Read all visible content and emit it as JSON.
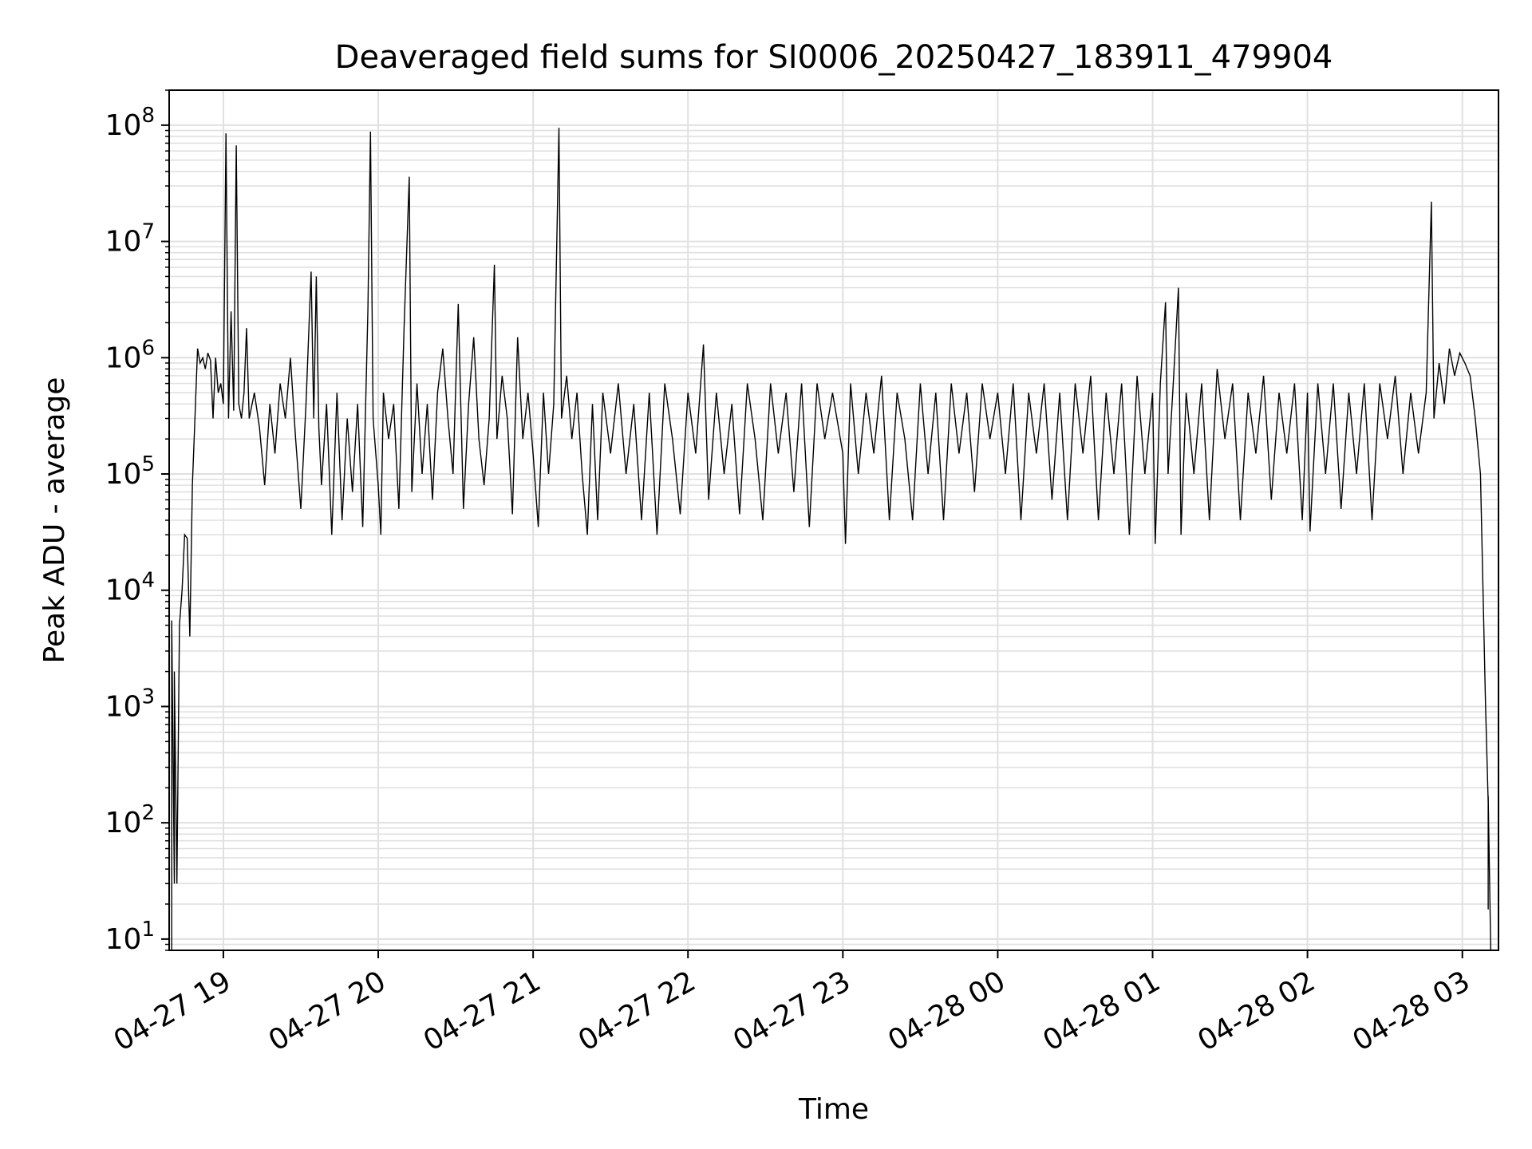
{
  "chart_data": {
    "type": "line",
    "title": "Deaveraged field sums for SI0006_20250427_183911_479904",
    "xlabel": "Time",
    "ylabel": "Peak ADU - average",
    "yscale": "log",
    "grid": "major and minor",
    "line_color": "#000000",
    "grid_color": "#e0e0e0",
    "xlim": [
      "2025-04-27 18:39",
      "2025-04-28 03:14"
    ],
    "ylim": [
      8,
      200000000
    ],
    "x_ticks": [
      {
        "value": "2025-04-27 19:00",
        "label": "04-27 19"
      },
      {
        "value": "2025-04-27 20:00",
        "label": "04-27 20"
      },
      {
        "value": "2025-04-27 21:00",
        "label": "04-27 21"
      },
      {
        "value": "2025-04-27 22:00",
        "label": "04-27 22"
      },
      {
        "value": "2025-04-27 23:00",
        "label": "04-27 23"
      },
      {
        "value": "2025-04-28 00:00",
        "label": "04-28 00"
      },
      {
        "value": "2025-04-28 01:00",
        "label": "04-28 01"
      },
      {
        "value": "2025-04-28 02:00",
        "label": "04-28 02"
      },
      {
        "value": "2025-04-28 03:00",
        "label": "04-28 03"
      }
    ],
    "y_ticks": [
      {
        "value": 10,
        "base": "10",
        "exp": "1"
      },
      {
        "value": 100,
        "base": "10",
        "exp": "2"
      },
      {
        "value": 1000,
        "base": "10",
        "exp": "3"
      },
      {
        "value": 10000,
        "base": "10",
        "exp": "4"
      },
      {
        "value": 100000,
        "base": "10",
        "exp": "5"
      },
      {
        "value": 1000000,
        "base": "10",
        "exp": "6"
      },
      {
        "value": 10000000,
        "base": "10",
        "exp": "7"
      },
      {
        "value": 100000000,
        "base": "10",
        "exp": "8"
      }
    ],
    "series": [
      {
        "points": [
          [
            "2025-04-27 18:39",
            8
          ],
          [
            "2025-04-27 18:40",
            8
          ],
          [
            "2025-04-27 18:40",
            5500
          ],
          [
            "2025-04-27 18:41",
            30
          ],
          [
            "2025-04-27 18:41",
            2000
          ],
          [
            "2025-04-27 18:42",
            30
          ],
          [
            "2025-04-27 18:43",
            5000
          ],
          [
            "2025-04-27 18:44",
            10000
          ],
          [
            "2025-04-27 18:45",
            30000
          ],
          [
            "2025-04-27 18:46",
            28000
          ],
          [
            "2025-04-27 18:47",
            4000
          ],
          [
            "2025-04-27 18:48",
            80000
          ],
          [
            "2025-04-27 18:49",
            300000
          ],
          [
            "2025-04-27 18:50",
            1200000
          ],
          [
            "2025-04-27 18:51",
            900000
          ],
          [
            "2025-04-27 18:52",
            1000000
          ],
          [
            "2025-04-27 18:53",
            800000
          ],
          [
            "2025-04-27 18:54",
            1100000
          ],
          [
            "2025-04-27 18:55",
            950000
          ],
          [
            "2025-04-27 18:56",
            300000
          ],
          [
            "2025-04-27 18:57",
            1000000
          ],
          [
            "2025-04-27 18:58",
            500000
          ],
          [
            "2025-04-27 18:59",
            600000
          ],
          [
            "2025-04-27 19:00",
            400000
          ],
          [
            "2025-04-27 19:01",
            85000000
          ],
          [
            "2025-04-27 19:02",
            300000
          ],
          [
            "2025-04-27 19:03",
            2500000
          ],
          [
            "2025-04-27 19:04",
            350000
          ],
          [
            "2025-04-27 19:05",
            67000000
          ],
          [
            "2025-04-27 19:06",
            400000
          ],
          [
            "2025-04-27 19:07",
            300000
          ],
          [
            "2025-04-27 19:08",
            500000
          ],
          [
            "2025-04-27 19:09",
            1800000
          ],
          [
            "2025-04-27 19:10",
            300000
          ],
          [
            "2025-04-27 19:12",
            500000
          ],
          [
            "2025-04-27 19:14",
            250000
          ],
          [
            "2025-04-27 19:16",
            80000
          ],
          [
            "2025-04-27 19:18",
            400000
          ],
          [
            "2025-04-27 19:20",
            150000
          ],
          [
            "2025-04-27 19:22",
            600000
          ],
          [
            "2025-04-27 19:24",
            300000
          ],
          [
            "2025-04-27 19:26",
            1000000
          ],
          [
            "2025-04-27 19:28",
            200000
          ],
          [
            "2025-04-27 19:30",
            50000
          ],
          [
            "2025-04-27 19:32",
            400000
          ],
          [
            "2025-04-27 19:34",
            5500000
          ],
          [
            "2025-04-27 19:35",
            300000
          ],
          [
            "2025-04-27 19:36",
            5000000
          ],
          [
            "2025-04-27 19:37",
            250000
          ],
          [
            "2025-04-27 19:38",
            80000
          ],
          [
            "2025-04-27 19:40",
            400000
          ],
          [
            "2025-04-27 19:42",
            30000
          ],
          [
            "2025-04-27 19:44",
            500000
          ],
          [
            "2025-04-27 19:46",
            40000
          ],
          [
            "2025-04-27 19:48",
            300000
          ],
          [
            "2025-04-27 19:50",
            70000
          ],
          [
            "2025-04-27 19:52",
            400000
          ],
          [
            "2025-04-27 19:54",
            35000
          ],
          [
            "2025-04-27 19:56",
            2600000
          ],
          [
            "2025-04-27 19:57",
            88000000
          ],
          [
            "2025-04-27 19:58",
            300000
          ],
          [
            "2025-04-27 20:00",
            80000
          ],
          [
            "2025-04-27 20:01",
            30000
          ],
          [
            "2025-04-27 20:02",
            500000
          ],
          [
            "2025-04-27 20:04",
            200000
          ],
          [
            "2025-04-27 20:06",
            400000
          ],
          [
            "2025-04-27 20:08",
            50000
          ],
          [
            "2025-04-27 20:10",
            1800000
          ],
          [
            "2025-04-27 20:12",
            36000000
          ],
          [
            "2025-04-27 20:13",
            70000
          ],
          [
            "2025-04-27 20:15",
            600000
          ],
          [
            "2025-04-27 20:17",
            100000
          ],
          [
            "2025-04-27 20:19",
            400000
          ],
          [
            "2025-04-27 20:21",
            60000
          ],
          [
            "2025-04-27 20:23",
            500000
          ],
          [
            "2025-04-27 20:25",
            1200000
          ],
          [
            "2025-04-27 20:27",
            300000
          ],
          [
            "2025-04-27 20:29",
            100000
          ],
          [
            "2025-04-27 20:31",
            2900000
          ],
          [
            "2025-04-27 20:33",
            50000
          ],
          [
            "2025-04-27 20:35",
            400000
          ],
          [
            "2025-04-27 20:37",
            1500000
          ],
          [
            "2025-04-27 20:39",
            200000
          ],
          [
            "2025-04-27 20:41",
            80000
          ],
          [
            "2025-04-27 20:43",
            300000
          ],
          [
            "2025-04-27 20:45",
            6300000
          ],
          [
            "2025-04-27 20:46",
            200000
          ],
          [
            "2025-04-27 20:48",
            700000
          ],
          [
            "2025-04-27 20:50",
            300000
          ],
          [
            "2025-04-27 20:52",
            45000
          ],
          [
            "2025-04-27 20:54",
            1500000
          ],
          [
            "2025-04-27 20:56",
            200000
          ],
          [
            "2025-04-27 20:58",
            500000
          ],
          [
            "2025-04-27 21:00",
            150000
          ],
          [
            "2025-04-27 21:02",
            35000
          ],
          [
            "2025-04-27 21:04",
            500000
          ],
          [
            "2025-04-27 21:06",
            100000
          ],
          [
            "2025-04-27 21:08",
            400000
          ],
          [
            "2025-04-27 21:10",
            95000000
          ],
          [
            "2025-04-27 21:11",
            300000
          ],
          [
            "2025-04-27 21:13",
            700000
          ],
          [
            "2025-04-27 21:15",
            200000
          ],
          [
            "2025-04-27 21:17",
            500000
          ],
          [
            "2025-04-27 21:19",
            100000
          ],
          [
            "2025-04-27 21:21",
            30000
          ],
          [
            "2025-04-27 21:23",
            400000
          ],
          [
            "2025-04-27 21:25",
            40000
          ],
          [
            "2025-04-27 21:27",
            500000
          ],
          [
            "2025-04-27 21:30",
            150000
          ],
          [
            "2025-04-27 21:33",
            600000
          ],
          [
            "2025-04-27 21:36",
            100000
          ],
          [
            "2025-04-27 21:39",
            400000
          ],
          [
            "2025-04-27 21:42",
            40000
          ],
          [
            "2025-04-27 21:45",
            500000
          ],
          [
            "2025-04-27 21:48",
            30000
          ],
          [
            "2025-04-27 21:51",
            600000
          ],
          [
            "2025-04-27 21:54",
            200000
          ],
          [
            "2025-04-27 21:57",
            45000
          ],
          [
            "2025-04-27 22:00",
            500000
          ],
          [
            "2025-04-27 22:03",
            150000
          ],
          [
            "2025-04-27 22:06",
            1300000
          ],
          [
            "2025-04-27 22:08",
            60000
          ],
          [
            "2025-04-27 22:11",
            500000
          ],
          [
            "2025-04-27 22:14",
            100000
          ],
          [
            "2025-04-27 22:17",
            400000
          ],
          [
            "2025-04-27 22:20",
            45000
          ],
          [
            "2025-04-27 22:23",
            600000
          ],
          [
            "2025-04-27 22:26",
            200000
          ],
          [
            "2025-04-27 22:29",
            40000
          ],
          [
            "2025-04-27 22:32",
            600000
          ],
          [
            "2025-04-27 22:35",
            150000
          ],
          [
            "2025-04-27 22:38",
            500000
          ],
          [
            "2025-04-27 22:41",
            70000
          ],
          [
            "2025-04-27 22:44",
            600000
          ],
          [
            "2025-04-27 22:47",
            35000
          ],
          [
            "2025-04-27 22:50",
            600000
          ],
          [
            "2025-04-27 22:53",
            200000
          ],
          [
            "2025-04-27 22:56",
            500000
          ],
          [
            "2025-04-27 23:00",
            150000
          ],
          [
            "2025-04-27 23:01",
            25000
          ],
          [
            "2025-04-27 23:03",
            600000
          ],
          [
            "2025-04-27 23:06",
            100000
          ],
          [
            "2025-04-27 23:09",
            500000
          ],
          [
            "2025-04-27 23:12",
            150000
          ],
          [
            "2025-04-27 23:15",
            700000
          ],
          [
            "2025-04-27 23:18",
            40000
          ],
          [
            "2025-04-27 23:21",
            500000
          ],
          [
            "2025-04-27 23:24",
            200000
          ],
          [
            "2025-04-27 23:27",
            40000
          ],
          [
            "2025-04-27 23:30",
            600000
          ],
          [
            "2025-04-27 23:33",
            100000
          ],
          [
            "2025-04-27 23:36",
            500000
          ],
          [
            "2025-04-27 23:39",
            40000
          ],
          [
            "2025-04-27 23:42",
            600000
          ],
          [
            "2025-04-27 23:45",
            150000
          ],
          [
            "2025-04-27 23:48",
            500000
          ],
          [
            "2025-04-27 23:51",
            70000
          ],
          [
            "2025-04-27 23:54",
            600000
          ],
          [
            "2025-04-27 23:57",
            200000
          ],
          [
            "2025-04-28 00:00",
            500000
          ],
          [
            "2025-04-28 00:03",
            100000
          ],
          [
            "2025-04-28 00:06",
            600000
          ],
          [
            "2025-04-28 00:09",
            40000
          ],
          [
            "2025-04-28 00:12",
            500000
          ],
          [
            "2025-04-28 00:15",
            150000
          ],
          [
            "2025-04-28 00:18",
            600000
          ],
          [
            "2025-04-28 00:21",
            60000
          ],
          [
            "2025-04-28 00:24",
            500000
          ],
          [
            "2025-04-28 00:27",
            40000
          ],
          [
            "2025-04-28 00:30",
            600000
          ],
          [
            "2025-04-28 00:33",
            150000
          ],
          [
            "2025-04-28 00:36",
            700000
          ],
          [
            "2025-04-28 00:39",
            40000
          ],
          [
            "2025-04-28 00:42",
            500000
          ],
          [
            "2025-04-28 00:45",
            100000
          ],
          [
            "2025-04-28 00:48",
            600000
          ],
          [
            "2025-04-28 00:51",
            30000
          ],
          [
            "2025-04-28 00:54",
            700000
          ],
          [
            "2025-04-28 00:57",
            100000
          ],
          [
            "2025-04-28 01:00",
            500000
          ],
          [
            "2025-04-28 01:01",
            25000
          ],
          [
            "2025-04-28 01:03",
            600000
          ],
          [
            "2025-04-28 01:05",
            3000000
          ],
          [
            "2025-04-28 01:06",
            100000
          ],
          [
            "2025-04-28 01:08",
            600000
          ],
          [
            "2025-04-28 01:10",
            4000000
          ],
          [
            "2025-04-28 01:11",
            30000
          ],
          [
            "2025-04-28 01:13",
            500000
          ],
          [
            "2025-04-28 01:16",
            100000
          ],
          [
            "2025-04-28 01:19",
            600000
          ],
          [
            "2025-04-28 01:22",
            40000
          ],
          [
            "2025-04-28 01:25",
            800000
          ],
          [
            "2025-04-28 01:28",
            200000
          ],
          [
            "2025-04-28 01:31",
            600000
          ],
          [
            "2025-04-28 01:34",
            40000
          ],
          [
            "2025-04-28 01:37",
            500000
          ],
          [
            "2025-04-28 01:40",
            150000
          ],
          [
            "2025-04-28 01:43",
            700000
          ],
          [
            "2025-04-28 01:46",
            60000
          ],
          [
            "2025-04-28 01:49",
            500000
          ],
          [
            "2025-04-28 01:52",
            150000
          ],
          [
            "2025-04-28 01:55",
            600000
          ],
          [
            "2025-04-28 01:58",
            40000
          ],
          [
            "2025-04-28 02:00",
            500000
          ],
          [
            "2025-04-28 02:01",
            32000
          ],
          [
            "2025-04-28 02:04",
            600000
          ],
          [
            "2025-04-28 02:07",
            100000
          ],
          [
            "2025-04-28 02:10",
            600000
          ],
          [
            "2025-04-28 02:13",
            50000
          ],
          [
            "2025-04-28 02:16",
            500000
          ],
          [
            "2025-04-28 02:19",
            100000
          ],
          [
            "2025-04-28 02:22",
            600000
          ],
          [
            "2025-04-28 02:25",
            40000
          ],
          [
            "2025-04-28 02:28",
            600000
          ],
          [
            "2025-04-28 02:31",
            200000
          ],
          [
            "2025-04-28 02:34",
            700000
          ],
          [
            "2025-04-28 02:37",
            100000
          ],
          [
            "2025-04-28 02:40",
            500000
          ],
          [
            "2025-04-28 02:43",
            150000
          ],
          [
            "2025-04-28 02:46",
            500000
          ],
          [
            "2025-04-28 02:48",
            22000000
          ],
          [
            "2025-04-28 02:49",
            300000
          ],
          [
            "2025-04-28 02:51",
            900000
          ],
          [
            "2025-04-28 02:53",
            400000
          ],
          [
            "2025-04-28 02:55",
            1200000
          ],
          [
            "2025-04-28 02:57",
            700000
          ],
          [
            "2025-04-28 02:59",
            1100000
          ],
          [
            "2025-04-28 03:01",
            900000
          ],
          [
            "2025-04-28 03:03",
            700000
          ],
          [
            "2025-04-28 03:05",
            300000
          ],
          [
            "2025-04-28 03:07",
            100000
          ],
          [
            "2025-04-28 03:08",
            10000
          ],
          [
            "2025-04-28 03:09",
            1000
          ],
          [
            "2025-04-28 03:10",
            150
          ],
          [
            "2025-04-28 03:10",
            18
          ],
          [
            "2025-04-28 03:10",
            170
          ],
          [
            "2025-04-28 03:11",
            8
          ]
        ]
      }
    ]
  }
}
